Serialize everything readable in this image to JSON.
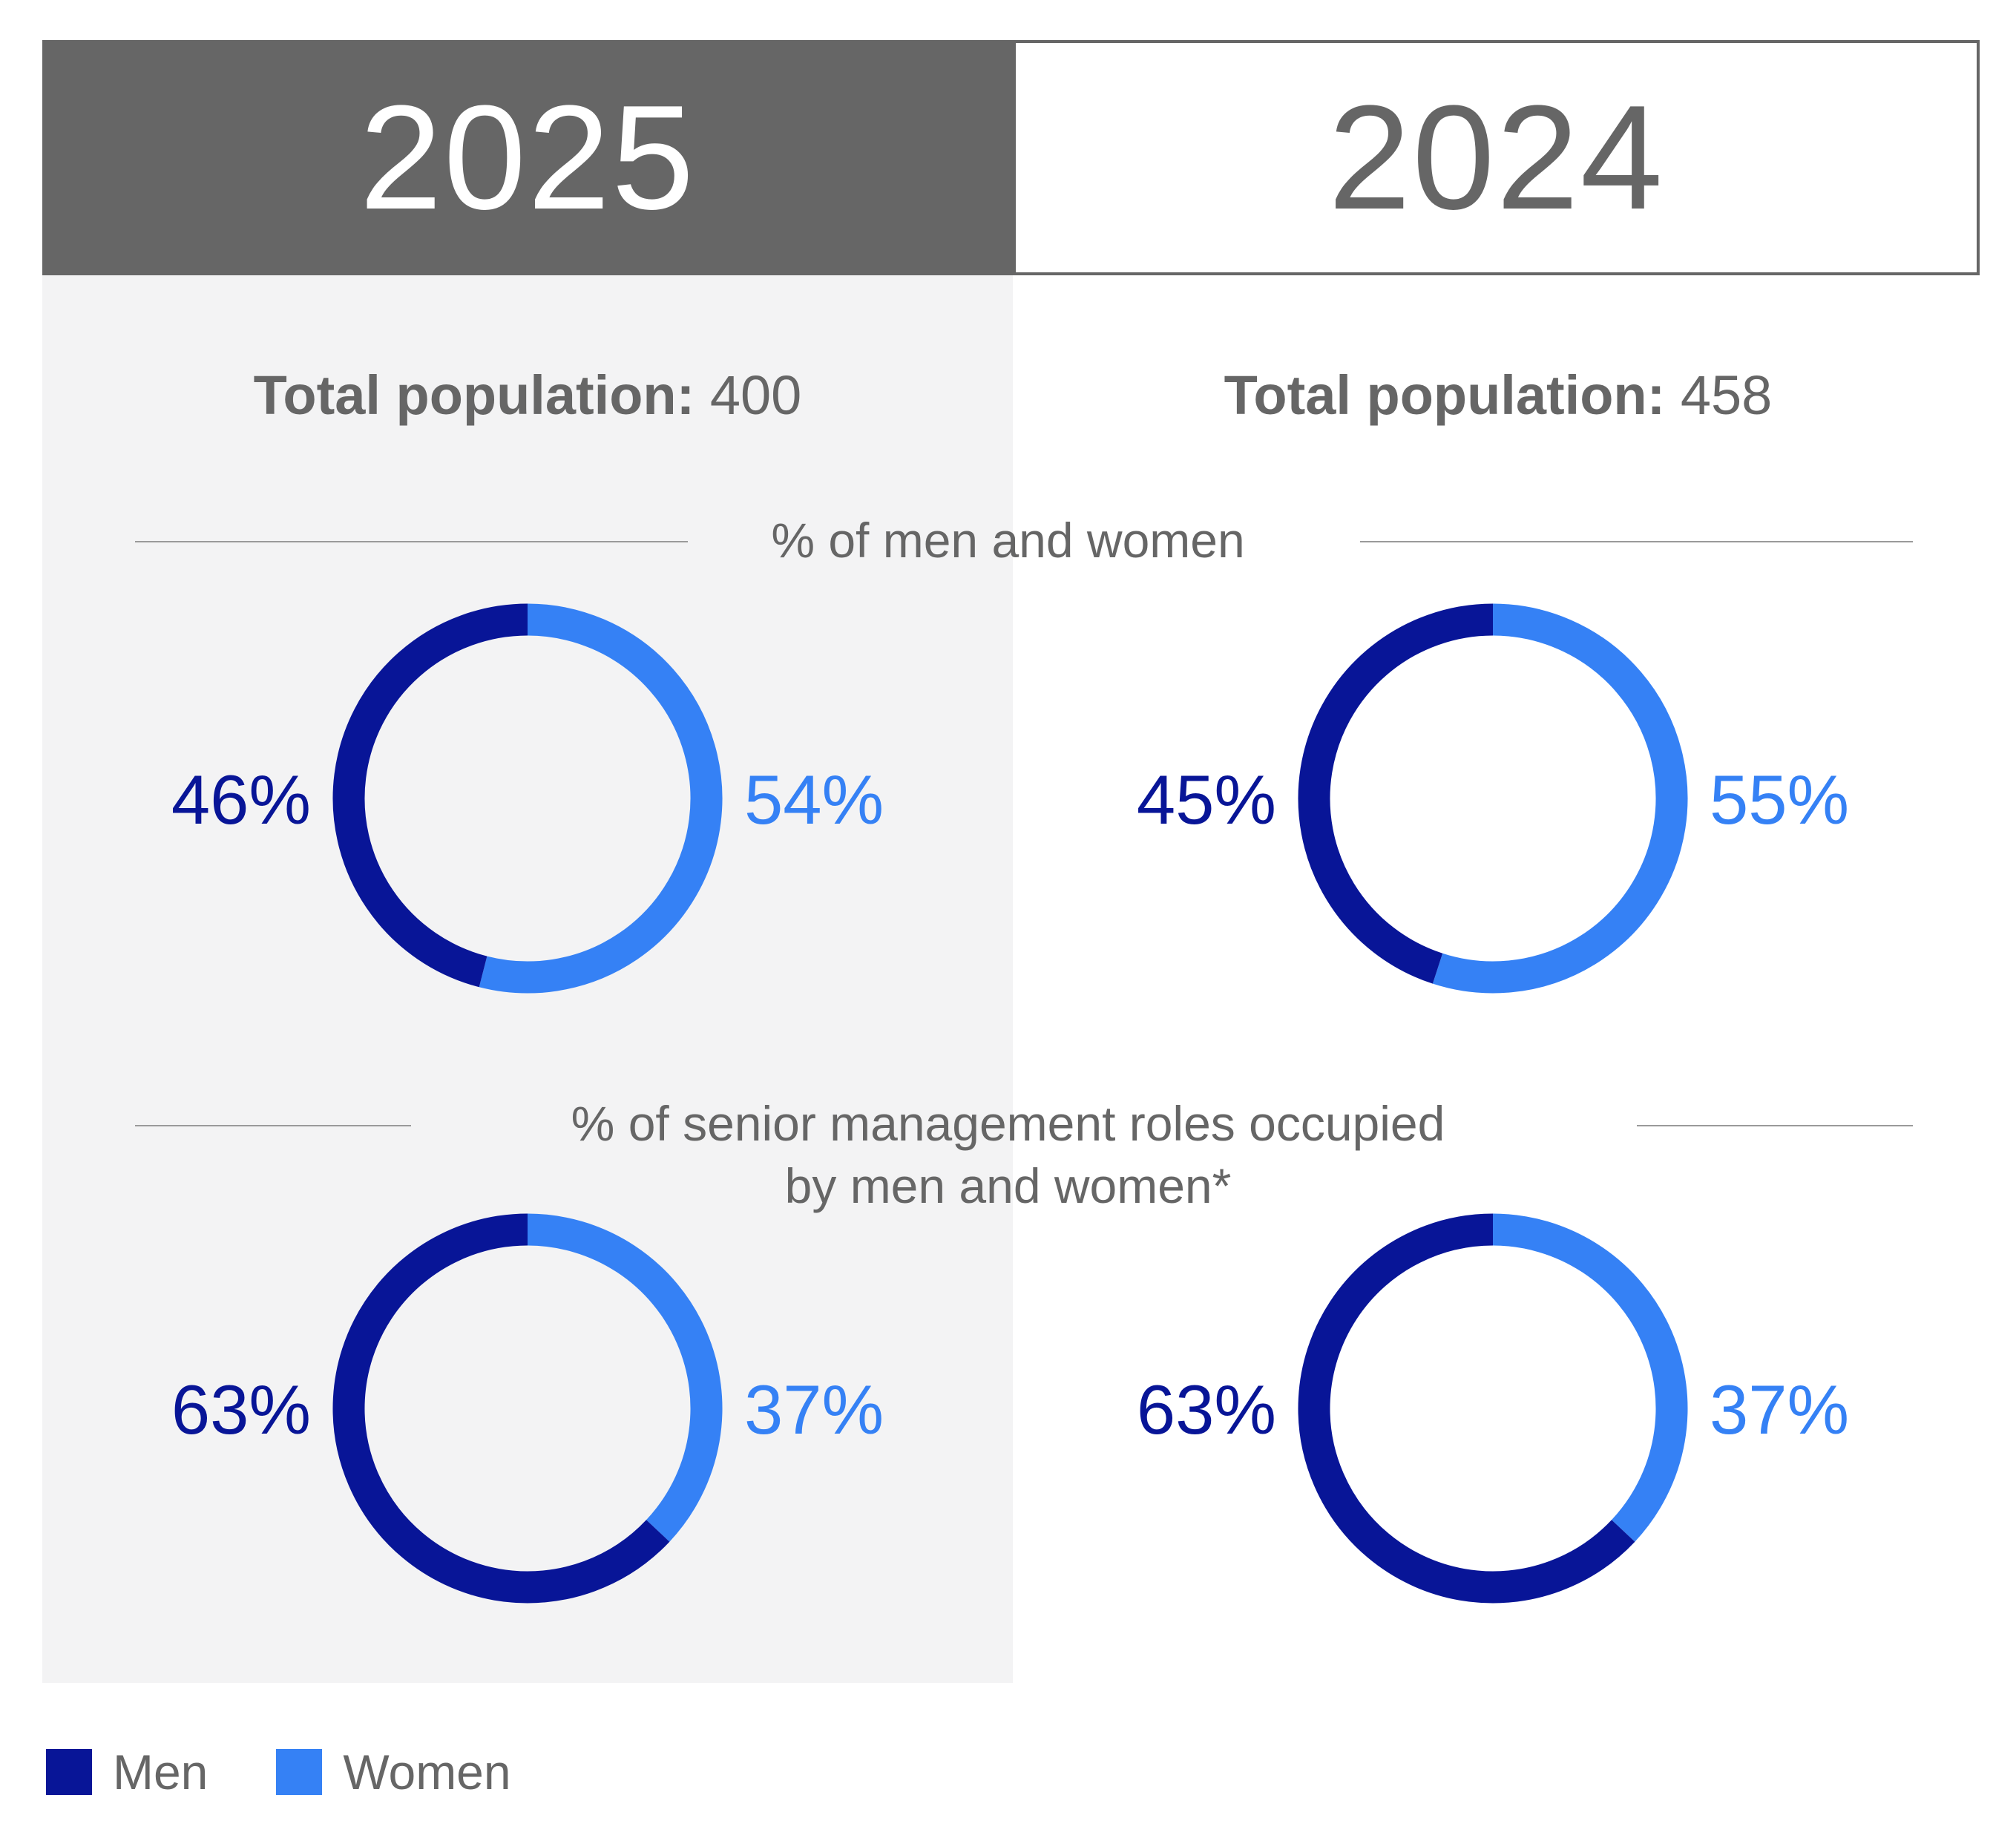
{
  "colors": {
    "men": "#081597",
    "women": "#3581f5",
    "tab_active": "#666666",
    "panel": "#f3f3f4"
  },
  "tabs": [
    {
      "label": "2025",
      "active": true
    },
    {
      "label": "2024",
      "active": false
    }
  ],
  "totals": [
    {
      "label": "Total population:",
      "value": "400"
    },
    {
      "label": "Total population:",
      "value": "458"
    }
  ],
  "sections": {
    "gender": "% of men and women",
    "senior_line1": "% of senior management roles occupied",
    "senior_line2": "by men and women*"
  },
  "legend": {
    "men": "Men",
    "women": "Women"
  },
  "chart_data": [
    {
      "type": "pie",
      "donut": true,
      "year": "2025",
      "section": "% of men and women",
      "categories": [
        "Men",
        "Women"
      ],
      "values": [
        46,
        54
      ],
      "labels": [
        "46%",
        "54%"
      ]
    },
    {
      "type": "pie",
      "donut": true,
      "year": "2024",
      "section": "% of men and women",
      "categories": [
        "Men",
        "Women"
      ],
      "values": [
        45,
        55
      ],
      "labels": [
        "45%",
        "55%"
      ]
    },
    {
      "type": "pie",
      "donut": true,
      "year": "2025",
      "section": "% of senior management roles occupied by men and women*",
      "categories": [
        "Men",
        "Women"
      ],
      "values": [
        63,
        37
      ],
      "labels": [
        "63%",
        "37%"
      ]
    },
    {
      "type": "pie",
      "donut": true,
      "year": "2024",
      "section": "% of senior management roles occupied by men and women*",
      "categories": [
        "Men",
        "Women"
      ],
      "values": [
        63,
        37
      ],
      "labels": [
        "63%",
        "37%"
      ]
    }
  ]
}
